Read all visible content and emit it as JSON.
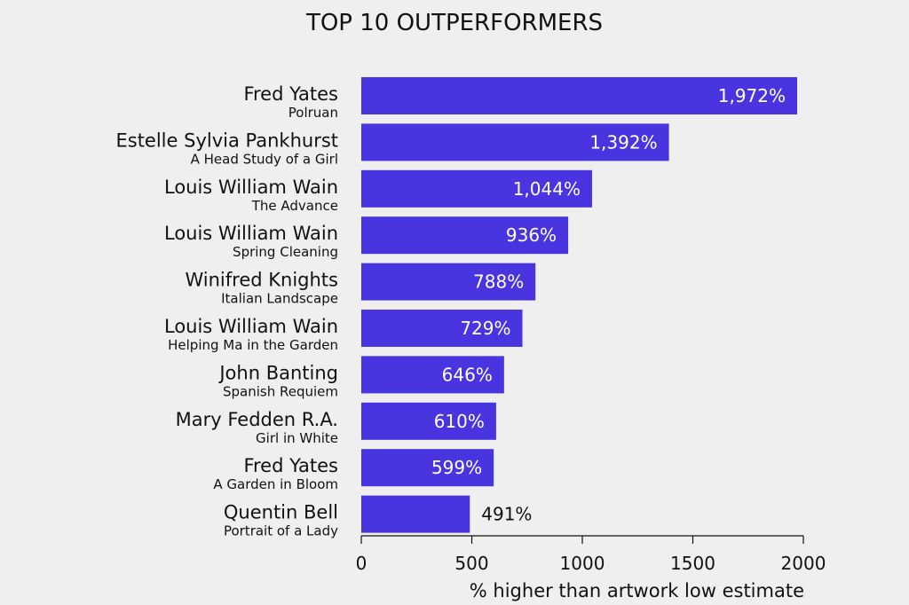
{
  "chart_data": {
    "type": "bar",
    "orientation": "horizontal",
    "title": "TOP 10 OUTPERFORMERS",
    "xlabel": "% higher than artwork low estimate",
    "xlim": [
      0,
      2000
    ],
    "xticks": [
      "0",
      "500",
      "1000",
      "1500",
      "2000"
    ],
    "grid": false,
    "bar_color": "#4935e0",
    "inside_label_color": "#ffffff",
    "outside_label_color": "#111111",
    "categories": [
      {
        "artist": "Fred Yates",
        "artwork": "Polruan",
        "value": 1972,
        "label": "1,972%"
      },
      {
        "artist": "Estelle Sylvia Pankhurst",
        "artwork": "A Head Study of a Girl",
        "value": 1392,
        "label": "1,392%"
      },
      {
        "artist": "Louis William Wain",
        "artwork": "The Advance",
        "value": 1044,
        "label": "1,044%"
      },
      {
        "artist": "Louis William Wain",
        "artwork": "Spring Cleaning",
        "value": 936,
        "label": "936%"
      },
      {
        "artist": "Winifred Knights",
        "artwork": "Italian Landscape",
        "value": 788,
        "label": "788%"
      },
      {
        "artist": "Louis William Wain",
        "artwork": "Helping Ma in the Garden",
        "value": 729,
        "label": "729%"
      },
      {
        "artist": "John Banting",
        "artwork": "Spanish Requiem",
        "value": 646,
        "label": "646%"
      },
      {
        "artist": "Mary Fedden R.A.",
        "artwork": "Girl in White",
        "value": 610,
        "label": "610%"
      },
      {
        "artist": "Fred Yates",
        "artwork": "A Garden in Bloom",
        "value": 599,
        "label": "599%"
      },
      {
        "artist": "Quentin Bell",
        "artwork": "Portrait of a Lady",
        "value": 491,
        "label": "491%"
      }
    ]
  }
}
